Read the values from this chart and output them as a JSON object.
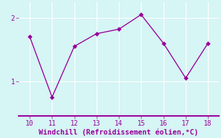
{
  "x": [
    10,
    11,
    12,
    13,
    14,
    15,
    16,
    17,
    18
  ],
  "y": [
    1.7,
    0.75,
    1.55,
    1.75,
    1.82,
    2.05,
    1.6,
    1.05,
    1.6
  ],
  "line_color": "#990099",
  "marker": "D",
  "marker_size": 3,
  "xlabel": "Windchill (Refroidissement éolien,°C)",
  "xlabel_color": "#990099",
  "background_color": "#d6f5f5",
  "grid_color": "#ffffff",
  "tick_color": "#990099",
  "spine_color": "#990099",
  "xlim": [
    9.5,
    18.5
  ],
  "ylim": [
    0.45,
    2.25
  ],
  "yticks": [
    1,
    2
  ],
  "xticks": [
    10,
    11,
    12,
    13,
    14,
    15,
    16,
    17,
    18
  ]
}
